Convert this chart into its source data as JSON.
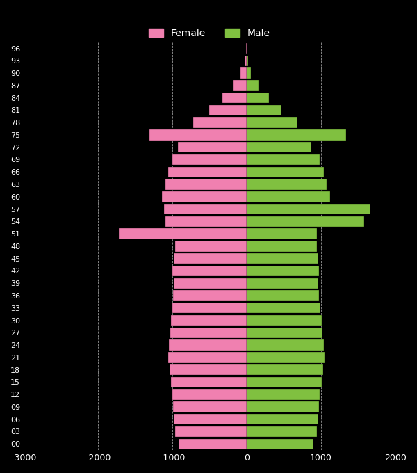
{
  "background_color": "#000000",
  "bar_color_female": "#f080b0",
  "bar_color_male": "#80c040",
  "legend_female": "Female",
  "legend_male": "Male",
  "xlim": [
    -3000,
    2000
  ],
  "xticks": [
    -3000,
    -2000,
    -1000,
    0,
    1000,
    2000
  ],
  "xtick_labels": [
    "-3000",
    "-2000",
    "-1000",
    "0",
    "1000",
    "2000"
  ],
  "grid_color": "#ffffff",
  "text_color": "#ffffff",
  "ages": [
    0,
    3,
    6,
    9,
    12,
    15,
    18,
    21,
    24,
    27,
    30,
    33,
    36,
    39,
    42,
    45,
    48,
    51,
    54,
    57,
    60,
    63,
    66,
    69,
    72,
    75,
    78,
    81,
    84,
    87,
    90,
    93,
    96
  ],
  "female": [
    -920,
    -960,
    -980,
    -990,
    -1000,
    -1020,
    -1040,
    -1060,
    -1050,
    -1030,
    -1020,
    -1000,
    -990,
    -980,
    -1000,
    -980,
    -960,
    -1720,
    -1090,
    -1110,
    -1140,
    -1090,
    -1060,
    -1000,
    -930,
    -1310,
    -720,
    -510,
    -330,
    -185,
    -85,
    -32,
    -12
  ],
  "male": [
    900,
    940,
    960,
    975,
    985,
    1005,
    1025,
    1050,
    1040,
    1020,
    1010,
    990,
    975,
    960,
    975,
    960,
    940,
    940,
    1580,
    1660,
    1120,
    1070,
    1040,
    980,
    870,
    1340,
    680,
    470,
    295,
    155,
    58,
    18,
    5
  ]
}
